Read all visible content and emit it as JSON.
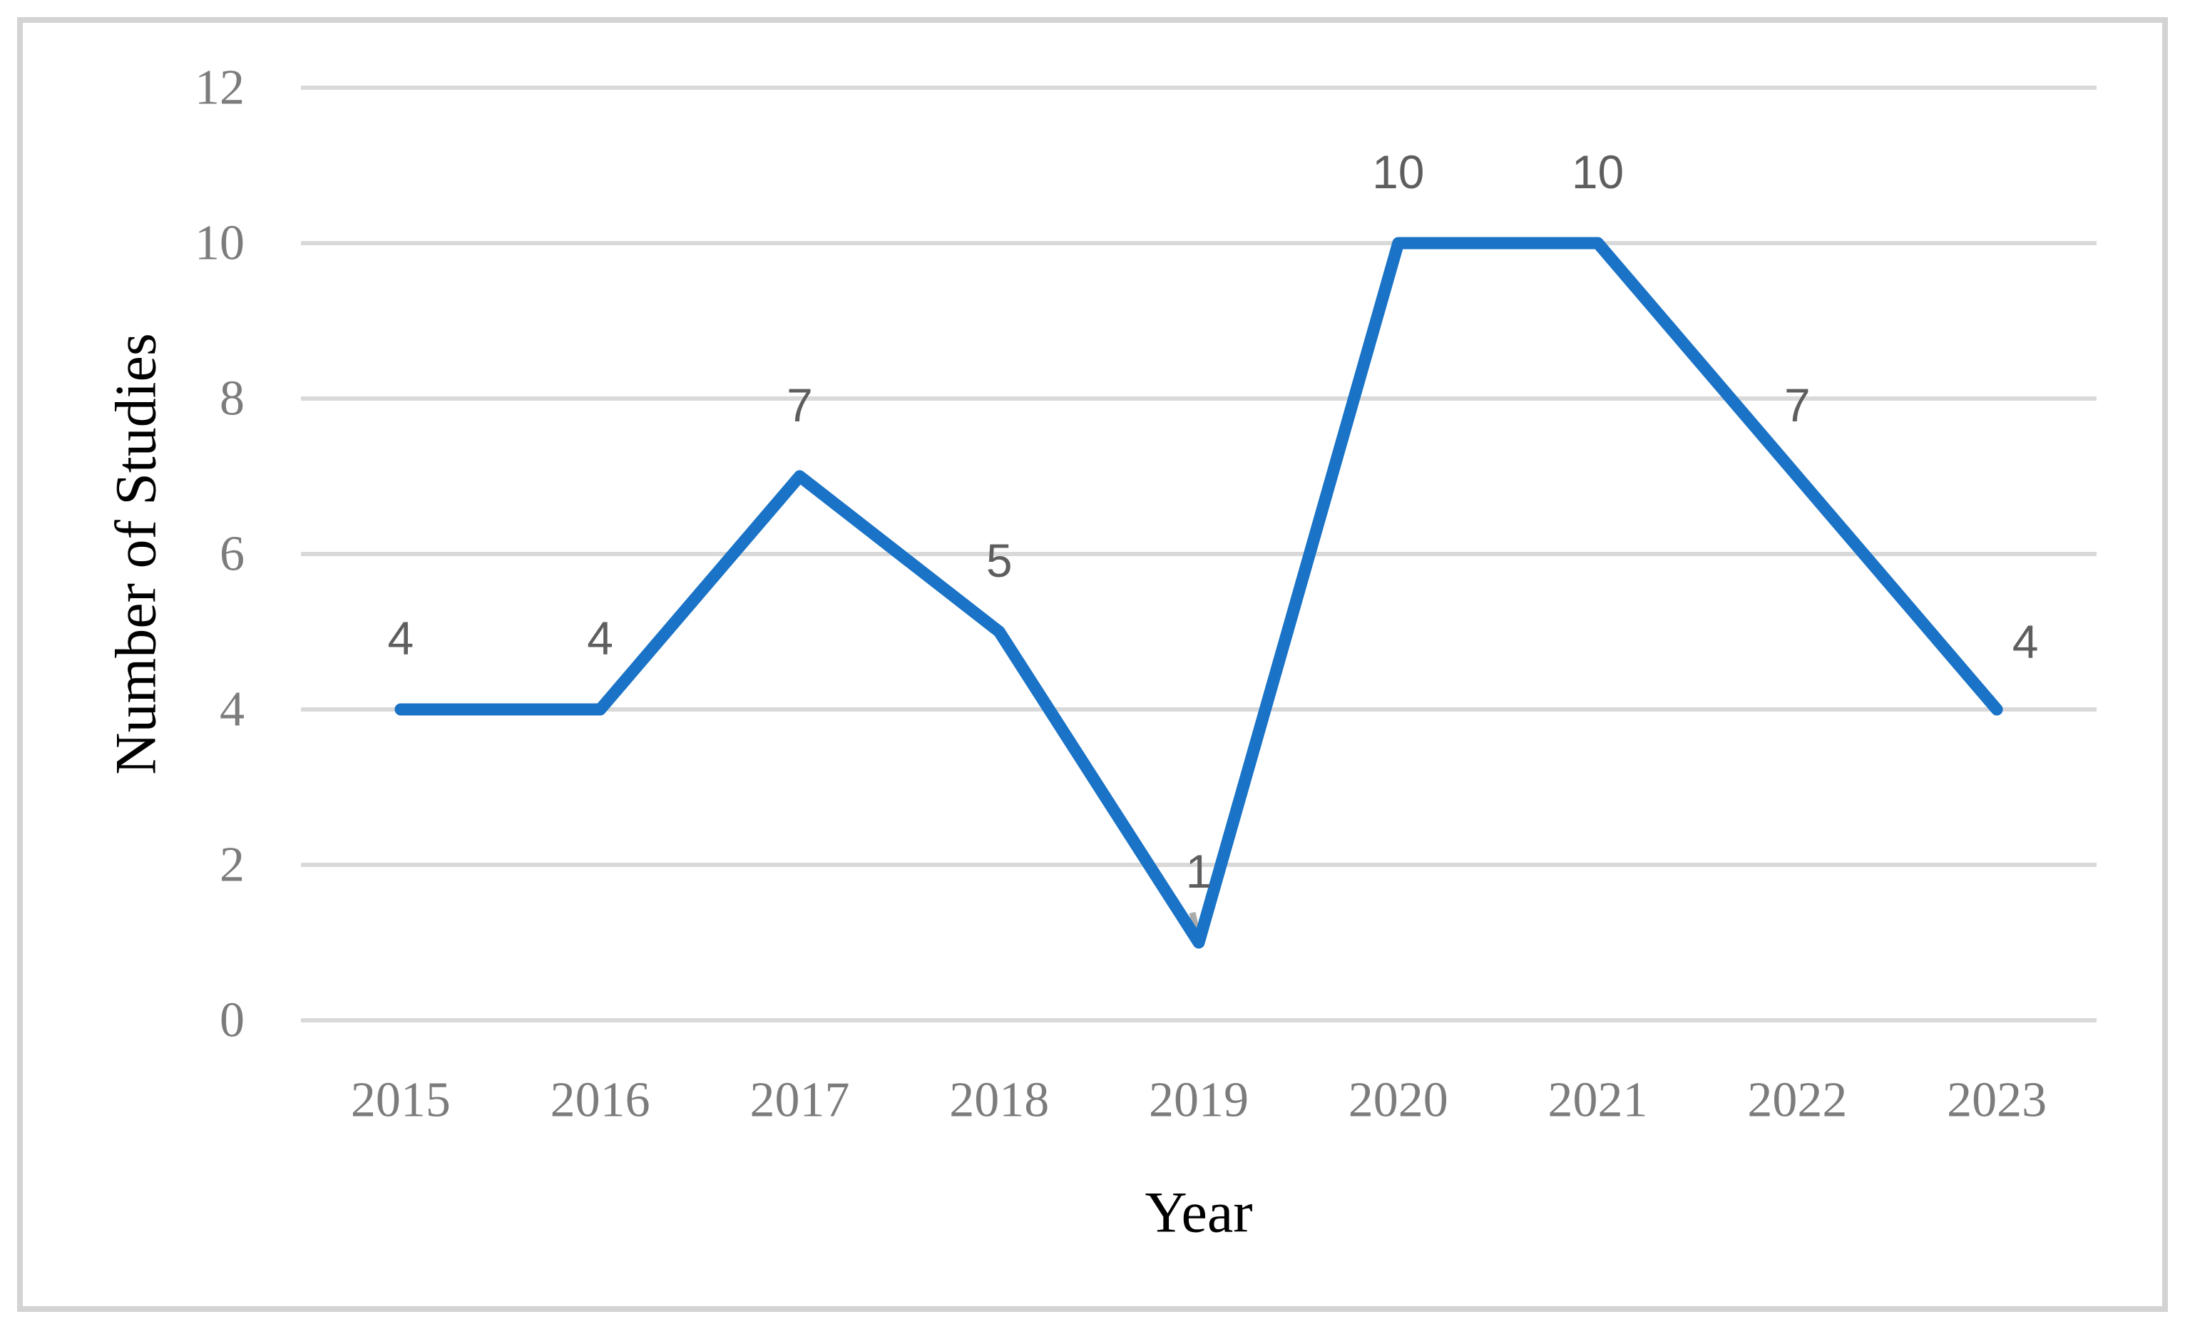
{
  "chart_data": {
    "type": "line",
    "title": "",
    "categories": [
      "2015",
      "2016",
      "2017",
      "2018",
      "2019",
      "2020",
      "2021",
      "2022",
      "2023"
    ],
    "series": [
      {
        "name": "Number of Studies",
        "values": [
          4,
          4,
          7,
          5,
          1,
          10,
          10,
          7,
          4
        ]
      }
    ],
    "data_labels": [
      "4",
      "4",
      "7",
      "5",
      "1",
      "10",
      "10",
      "7",
      "4"
    ],
    "xlabel": "Year",
    "ylabel": "Number of Studies",
    "y_ticks": [
      0,
      2,
      4,
      6,
      8,
      10,
      12
    ],
    "ylim": [
      0,
      12
    ],
    "grid": "horizontal-only",
    "legend": "none",
    "markers": "none",
    "annotations": [
      {
        "type": "label-leader-line",
        "category": "2019",
        "value": 1
      }
    ],
    "colors": {
      "line": "#1A73C6",
      "gridline": "#D9D9D9",
      "frame_border": "#D3D3D3",
      "tick_text": "#7C7C7C",
      "axis_title_text": "#7C7C7C",
      "data_label_text": "#5E5E5E",
      "leader_line": "#ABABAB",
      "background": "#FFFFFF"
    }
  }
}
